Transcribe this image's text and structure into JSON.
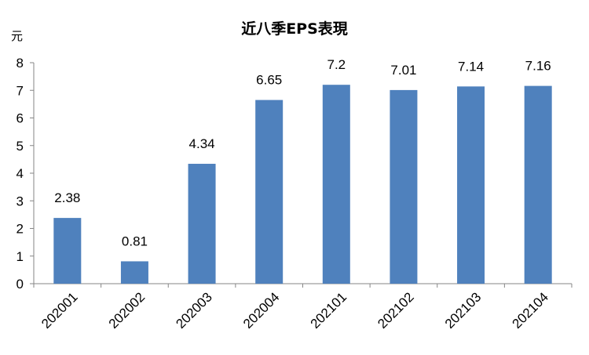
{
  "chart_data": {
    "type": "bar",
    "title": "近八季EPS表現",
    "ylabel": "元",
    "xlabel": "",
    "categories": [
      "202001",
      "202002",
      "202003",
      "202004",
      "202101",
      "202102",
      "202103",
      "202104"
    ],
    "values": [
      2.38,
      0.81,
      4.34,
      6.65,
      7.2,
      7.01,
      7.14,
      7.16
    ],
    "data_labels": [
      "2.38",
      "0.81",
      "4.34",
      "6.65",
      "7.2",
      "7.01",
      "7.14",
      "7.16"
    ],
    "ylim": [
      0,
      8
    ],
    "yticks": [
      "0",
      "1",
      "2",
      "3",
      "4",
      "5",
      "6",
      "7",
      "8"
    ],
    "grid": false,
    "legend": "none",
    "bar_color": "#4f81bd",
    "axis_color": "#868686"
  }
}
